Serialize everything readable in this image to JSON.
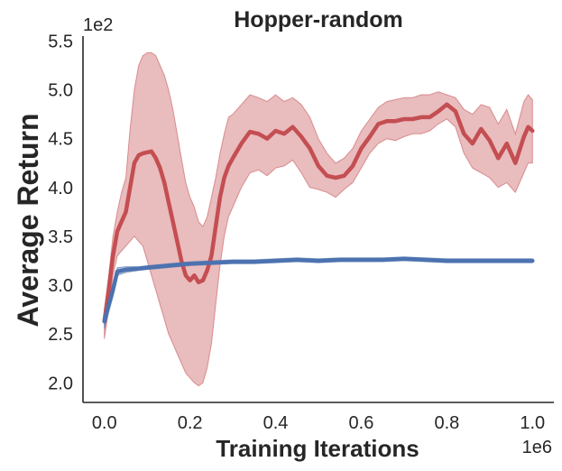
{
  "chart_data": {
    "type": "line",
    "title": "Hopper-random",
    "xlabel": "Training Iterations",
    "ylabel": "Average Return",
    "x_offset_label": "1e6",
    "y_offset_label": "1e2",
    "xlim": [
      -0.05,
      1.05
    ],
    "ylim": [
      1.8,
      5.55
    ],
    "xticks": [
      0.0,
      0.2,
      0.4,
      0.6,
      0.8,
      1.0
    ],
    "xtick_labels": [
      "0.0",
      "0.2",
      "0.4",
      "0.6",
      "0.8",
      "1.0"
    ],
    "yticks": [
      2.0,
      2.5,
      3.0,
      3.5,
      4.0,
      4.5,
      5.0,
      5.5
    ],
    "ytick_labels": [
      "2.0",
      "2.5",
      "3.0",
      "3.5",
      "4.0",
      "4.5",
      "5.0",
      "5.5"
    ],
    "grid": false,
    "colors": {
      "red": "#c44e52",
      "red_band": "#c44e52",
      "blue": "#4c72b0",
      "axis": "#262626"
    },
    "series": [
      {
        "color": "#c44e52",
        "x": [
          0.0,
          0.01,
          0.02,
          0.03,
          0.04,
          0.05,
          0.06,
          0.07,
          0.08,
          0.09,
          0.1,
          0.11,
          0.12,
          0.13,
          0.14,
          0.15,
          0.16,
          0.17,
          0.18,
          0.19,
          0.2,
          0.21,
          0.22,
          0.23,
          0.24,
          0.25,
          0.26,
          0.27,
          0.28,
          0.29,
          0.3,
          0.32,
          0.34,
          0.36,
          0.38,
          0.4,
          0.42,
          0.44,
          0.46,
          0.48,
          0.5,
          0.52,
          0.54,
          0.56,
          0.58,
          0.6,
          0.62,
          0.64,
          0.66,
          0.68,
          0.7,
          0.72,
          0.74,
          0.76,
          0.78,
          0.8,
          0.82,
          0.84,
          0.86,
          0.88,
          0.9,
          0.92,
          0.94,
          0.96,
          0.98,
          0.99,
          1.0
        ],
        "y": [
          2.63,
          2.95,
          3.3,
          3.55,
          3.65,
          3.75,
          4.0,
          4.25,
          4.33,
          4.35,
          4.36,
          4.37,
          4.3,
          4.2,
          4.05,
          3.85,
          3.65,
          3.45,
          3.25,
          3.1,
          3.05,
          3.1,
          3.03,
          3.05,
          3.15,
          3.3,
          3.6,
          3.9,
          4.1,
          4.22,
          4.3,
          4.45,
          4.57,
          4.55,
          4.5,
          4.58,
          4.55,
          4.62,
          4.52,
          4.4,
          4.22,
          4.12,
          4.1,
          4.12,
          4.22,
          4.4,
          4.52,
          4.65,
          4.68,
          4.68,
          4.7,
          4.7,
          4.72,
          4.72,
          4.78,
          4.85,
          4.78,
          4.55,
          4.45,
          4.6,
          4.48,
          4.3,
          4.45,
          4.25,
          4.52,
          4.62,
          4.58
        ],
        "lower": [
          2.45,
          2.75,
          3.1,
          3.3,
          3.35,
          3.4,
          3.45,
          3.5,
          3.45,
          3.4,
          3.25,
          3.1,
          2.95,
          2.8,
          2.65,
          2.5,
          2.4,
          2.3,
          2.2,
          2.1,
          2.05,
          2.0,
          1.97,
          2.0,
          2.15,
          2.4,
          2.8,
          3.2,
          3.5,
          3.7,
          3.8,
          4.0,
          4.15,
          4.18,
          4.12,
          4.2,
          4.22,
          4.28,
          4.15,
          4.0,
          3.98,
          3.95,
          3.9,
          3.98,
          4.05,
          4.2,
          4.35,
          4.45,
          4.5,
          4.48,
          4.52,
          4.55,
          4.55,
          4.58,
          4.65,
          4.7,
          4.62,
          4.35,
          4.2,
          4.15,
          4.1,
          4.0,
          4.05,
          3.95,
          4.15,
          4.25,
          4.25
        ],
        "upper": [
          2.75,
          3.1,
          3.5,
          3.75,
          3.95,
          4.1,
          4.6,
          5.0,
          5.25,
          5.35,
          5.38,
          5.38,
          5.35,
          5.25,
          5.15,
          5.0,
          4.8,
          4.55,
          4.3,
          4.05,
          3.9,
          3.8,
          3.65,
          3.6,
          3.7,
          3.9,
          4.1,
          4.35,
          4.55,
          4.72,
          4.75,
          4.85,
          4.95,
          4.92,
          4.88,
          4.95,
          4.88,
          4.92,
          4.85,
          4.72,
          4.5,
          4.35,
          4.25,
          4.3,
          4.4,
          4.58,
          4.7,
          4.82,
          4.88,
          4.9,
          4.92,
          4.92,
          4.95,
          4.95,
          4.98,
          4.95,
          4.92,
          4.8,
          4.75,
          4.85,
          4.82,
          4.65,
          4.8,
          4.55,
          4.88,
          4.95,
          4.9
        ]
      },
      {
        "color": "#4c72b0",
        "x": [
          0.0,
          0.01,
          0.02,
          0.03,
          0.05,
          0.08,
          0.1,
          0.15,
          0.2,
          0.25,
          0.3,
          0.35,
          0.4,
          0.45,
          0.5,
          0.55,
          0.6,
          0.65,
          0.7,
          0.75,
          0.8,
          0.85,
          0.9,
          0.95,
          1.0
        ],
        "y": [
          2.63,
          2.8,
          2.95,
          3.14,
          3.16,
          3.17,
          3.18,
          3.2,
          3.22,
          3.23,
          3.24,
          3.24,
          3.25,
          3.26,
          3.25,
          3.26,
          3.26,
          3.26,
          3.27,
          3.26,
          3.25,
          3.25,
          3.25,
          3.25,
          3.25
        ],
        "lower": [
          2.55,
          2.72,
          2.88,
          3.1,
          3.13,
          3.15,
          3.16,
          3.18,
          3.2,
          3.21,
          3.22,
          3.22,
          3.23,
          3.24,
          3.23,
          3.24,
          3.24,
          3.24,
          3.25,
          3.24,
          3.23,
          3.23,
          3.23,
          3.23,
          3.23
        ],
        "upper": [
          2.7,
          2.88,
          3.02,
          3.18,
          3.19,
          3.19,
          3.2,
          3.22,
          3.24,
          3.25,
          3.26,
          3.26,
          3.27,
          3.28,
          3.27,
          3.28,
          3.28,
          3.28,
          3.29,
          3.28,
          3.27,
          3.27,
          3.27,
          3.27,
          3.27
        ]
      }
    ]
  }
}
